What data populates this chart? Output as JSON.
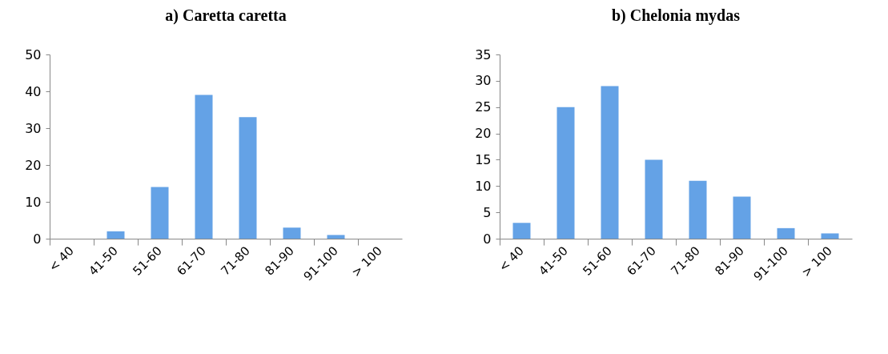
{
  "chart_data": [
    {
      "type": "bar",
      "title": "a) Caretta caretta",
      "categories": [
        "< 40",
        "41-50",
        "51-60",
        "61-70",
        "71-80",
        "81-90",
        "91-100",
        "> 100"
      ],
      "values": [
        0,
        2,
        14,
        39,
        33,
        3,
        1,
        0
      ],
      "color": "#64a2e6",
      "ylim": [
        0,
        50
      ],
      "yticks": [
        0,
        10,
        20,
        30,
        40,
        50
      ],
      "grid": false
    },
    {
      "type": "bar",
      "title": "b) Chelonia mydas",
      "categories": [
        "< 40",
        "41-50",
        "51-60",
        "61-70",
        "71-80",
        "81-90",
        "91-100",
        "> 100"
      ],
      "values": [
        3,
        25,
        29,
        15,
        11,
        8,
        2,
        1
      ],
      "color": "#64a2e6",
      "ylim": [
        0,
        35
      ],
      "yticks": [
        0,
        5,
        10,
        15,
        20,
        25,
        30,
        35
      ],
      "grid": false
    }
  ]
}
